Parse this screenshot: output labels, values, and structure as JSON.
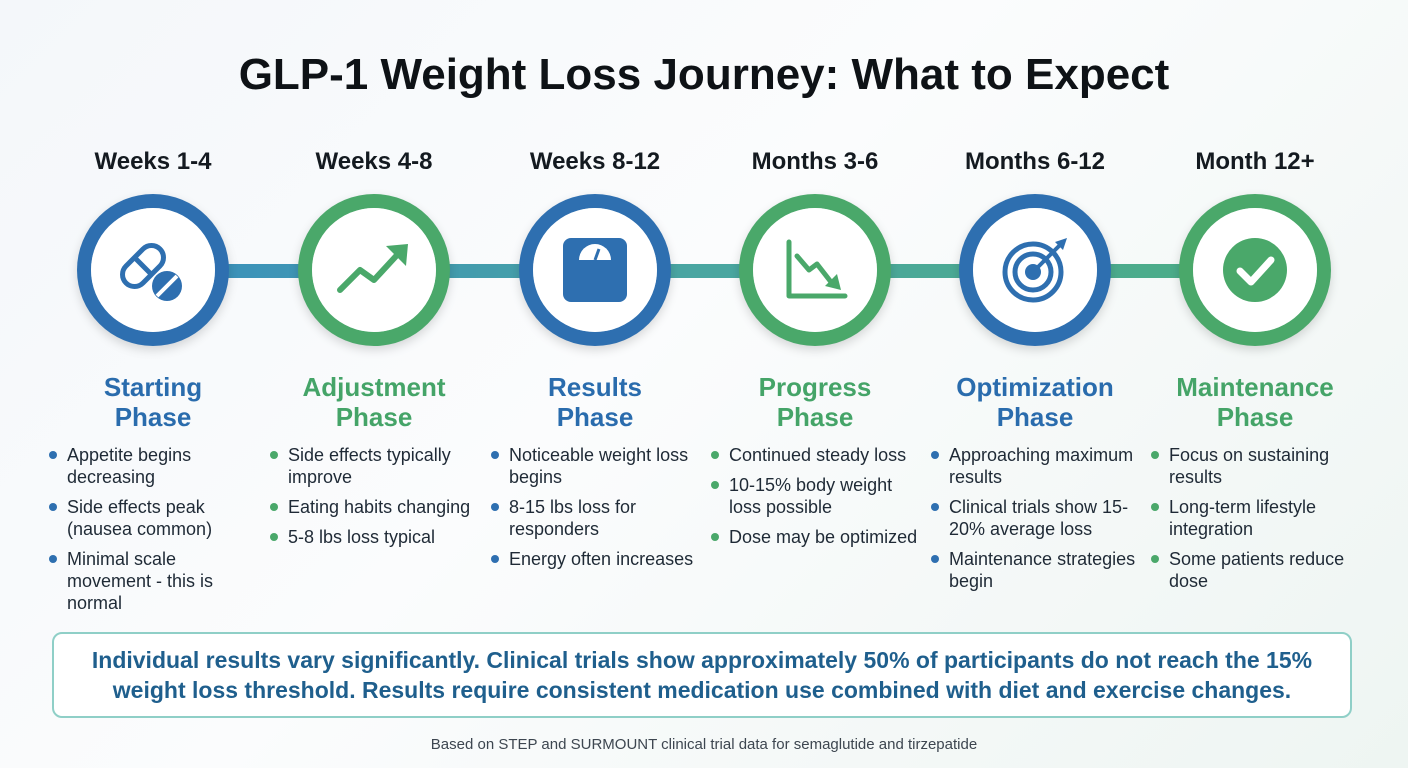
{
  "title": "GLP-1 Weight Loss Journey: What to Expect",
  "colors": {
    "blue": "#2e6fb0",
    "green": "#4aa86a",
    "disclaimer_text": "#1f5f8d",
    "disclaimer_border": "#8fcfc7"
  },
  "stages": [
    {
      "period": "Weeks 1-4",
      "phase_line1": "Starting",
      "phase_line2": "Phase",
      "accent": "blue",
      "icon": "pills-icon",
      "bullets": [
        "Appetite begins decreasing",
        "Side effects peak (nausea common)",
        "Minimal scale movement - this is normal"
      ]
    },
    {
      "period": "Weeks 4-8",
      "phase_line1": "Adjustment",
      "phase_line2": "Phase",
      "accent": "green",
      "icon": "trend-up-arrow-icon",
      "bullets": [
        "Side effects typically improve",
        "Eating habits changing",
        "5-8 lbs loss typical"
      ]
    },
    {
      "period": "Weeks 8-12",
      "phase_line1": "Results",
      "phase_line2": "Phase",
      "accent": "blue",
      "icon": "scale-icon",
      "bullets": [
        "Noticeable weight loss begins",
        "8-15 lbs loss for responders",
        "Energy often increases"
      ]
    },
    {
      "period": "Months 3-6",
      "phase_line1": "Progress",
      "phase_line2": "Phase",
      "accent": "green",
      "icon": "declining-chart-icon",
      "bullets": [
        "Continued steady loss",
        "10-15% body weight loss possible",
        "Dose may be optimized"
      ]
    },
    {
      "period": "Months 6-12",
      "phase_line1": "Optimization",
      "phase_line2": "Phase",
      "accent": "blue",
      "icon": "target-icon",
      "bullets": [
        "Approaching maximum results",
        "Clinical trials show 15-20% average loss",
        "Maintenance strategies begin"
      ]
    },
    {
      "period": "Month 12+",
      "phase_line1": "Maintenance",
      "phase_line2": "Phase",
      "accent": "green",
      "icon": "checkmark-icon",
      "bullets": [
        "Focus on sustaining results",
        "Long-term lifestyle integration",
        "Some patients reduce dose"
      ]
    }
  ],
  "disclaimer": "Individual results vary significantly. Clinical trials show approximately 50% of participants do not reach the 15% weight loss threshold. Results require consistent medication use combined with diet and exercise changes.",
  "footnote": "Based on STEP and SURMOUNT clinical trial data for semaglutide and tirzepatide"
}
